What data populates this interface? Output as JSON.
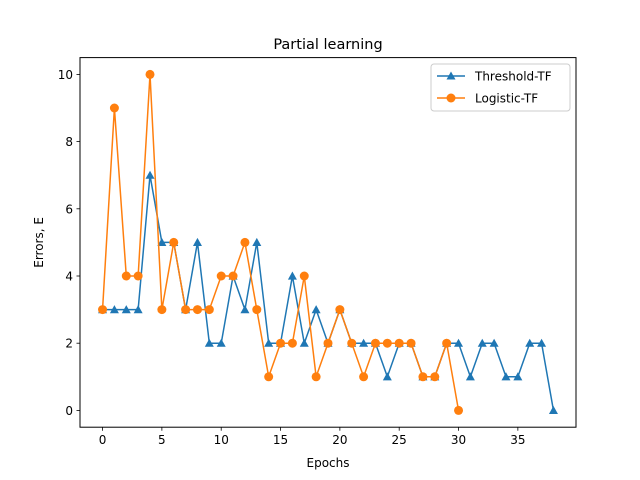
{
  "chart_data": {
    "type": "line",
    "title": "Partial learning",
    "xlabel": "Epochs",
    "ylabel": "Errors, E",
    "xlim": [
      -1.9,
      39.9
    ],
    "ylim": [
      -0.5,
      10.5
    ],
    "xticks": [
      0,
      5,
      10,
      15,
      20,
      25,
      30,
      35
    ],
    "yticks": [
      0,
      2,
      4,
      6,
      8,
      10
    ],
    "grid": false,
    "legend_position": "top-right",
    "series": [
      {
        "name": "Threshold-TF",
        "color": "#1f77b4",
        "marker": "triangle",
        "x": [
          0,
          1,
          2,
          3,
          4,
          5,
          6,
          7,
          8,
          9,
          10,
          11,
          12,
          13,
          14,
          15,
          16,
          17,
          18,
          19,
          20,
          21,
          22,
          23,
          24,
          25,
          26,
          27,
          28,
          29,
          30,
          31,
          32,
          33,
          34,
          35,
          36,
          37,
          38
        ],
        "values": [
          3,
          3,
          3,
          3,
          7,
          5,
          5,
          3,
          5,
          2,
          2,
          4,
          3,
          5,
          2,
          2,
          4,
          2,
          3,
          2,
          3,
          2,
          2,
          2,
          1,
          2,
          2,
          1,
          1,
          2,
          2,
          1,
          2,
          2,
          1,
          1,
          2,
          2,
          0
        ]
      },
      {
        "name": "Logistic-TF",
        "color": "#ff7f0e",
        "marker": "circle",
        "x": [
          0,
          1,
          2,
          3,
          4,
          5,
          6,
          7,
          8,
          9,
          10,
          11,
          12,
          13,
          14,
          15,
          16,
          17,
          18,
          19,
          20,
          21,
          22,
          23,
          24,
          25,
          26,
          27,
          28,
          29,
          30
        ],
        "values": [
          3,
          9,
          4,
          4,
          10,
          3,
          5,
          3,
          3,
          3,
          4,
          4,
          5,
          3,
          1,
          2,
          2,
          4,
          1,
          2,
          3,
          2,
          1,
          2,
          2,
          2,
          2,
          1,
          1,
          2,
          0
        ]
      }
    ]
  }
}
